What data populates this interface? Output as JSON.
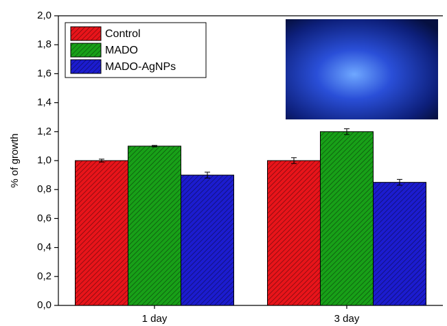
{
  "chart_data": {
    "type": "bar",
    "y_label": "% of growth",
    "categories": [
      "1 day",
      "3 day"
    ],
    "series": [
      {
        "name": "Control",
        "color": "#e8141a",
        "values": [
          1.0,
          1.0
        ],
        "errors": [
          0.01,
          0.02
        ]
      },
      {
        "name": "MADO",
        "color": "#18a018",
        "values": [
          1.1,
          1.2
        ],
        "errors": [
          0.005,
          0.02
        ]
      },
      {
        "name": "MADO-AgNPs",
        "color": "#1c1ccf",
        "values": [
          0.9,
          0.85
        ],
        "errors": [
          0.02,
          0.02
        ]
      }
    ],
    "ylim": [
      0,
      2
    ],
    "yticks": [
      {
        "value": 0,
        "label": "0,0"
      },
      {
        "value": 0.2,
        "label": "0,2"
      },
      {
        "value": 0.4,
        "label": "0,4"
      },
      {
        "value": 0.6,
        "label": "0,6"
      },
      {
        "value": 0.8,
        "label": "0,8"
      },
      {
        "value": 1.0,
        "label": "1,0"
      },
      {
        "value": 1.2,
        "label": "1,2"
      },
      {
        "value": 1.4,
        "label": "1,4"
      },
      {
        "value": 1.6,
        "label": "1,6"
      },
      {
        "value": 1.8,
        "label": "1,8"
      },
      {
        "value": 2.0,
        "label": "2,0"
      }
    ],
    "hatch": true,
    "legend": "top-left"
  }
}
